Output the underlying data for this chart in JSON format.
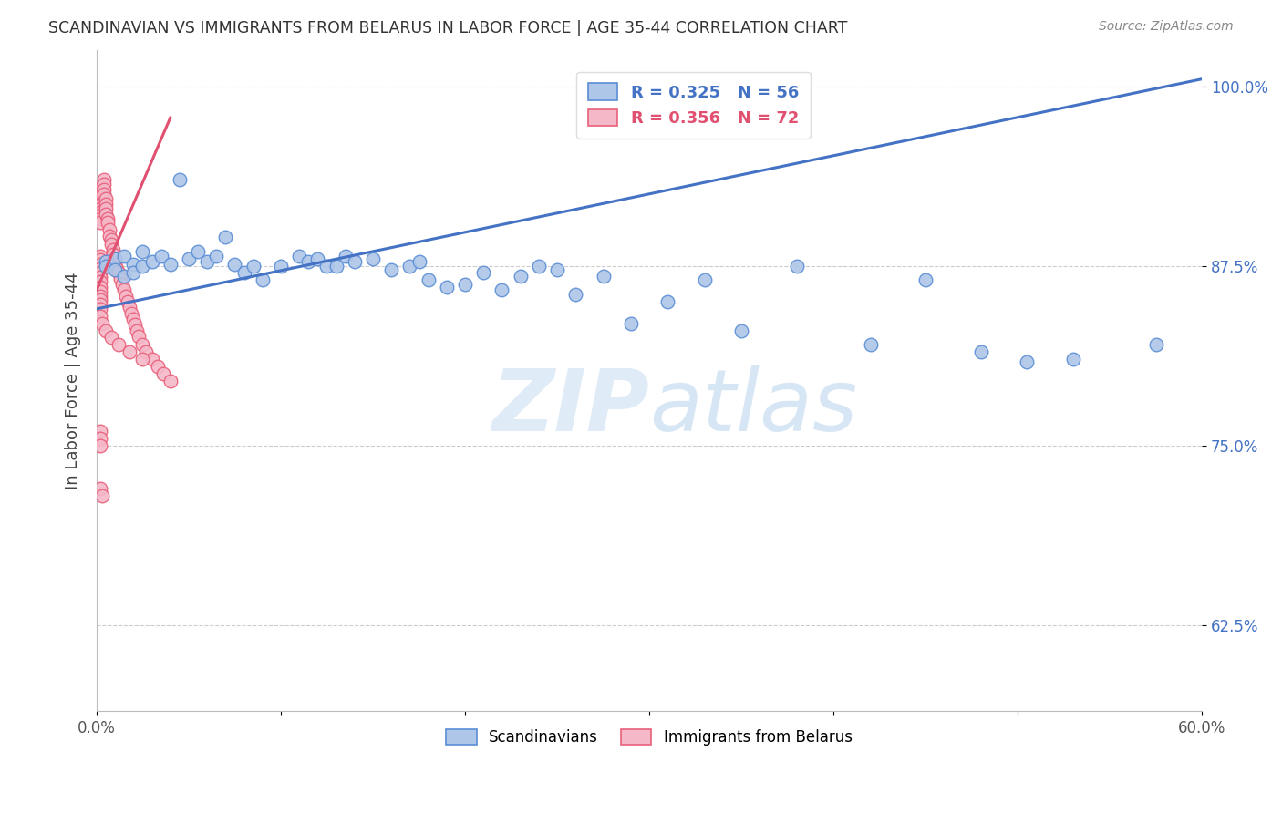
{
  "title": "SCANDINAVIAN VS IMMIGRANTS FROM BELARUS IN LABOR FORCE | AGE 35-44 CORRELATION CHART",
  "source": "Source: ZipAtlas.com",
  "ylabel": "In Labor Force | Age 35-44",
  "x_min": 0.0,
  "x_max": 0.6,
  "y_min": 0.565,
  "y_max": 1.025,
  "x_ticks": [
    0.0,
    0.1,
    0.2,
    0.3,
    0.4,
    0.5,
    0.6
  ],
  "x_tick_labels": [
    "0.0%",
    "",
    "",
    "",
    "",
    "",
    "60.0%"
  ],
  "y_ticks": [
    0.625,
    0.75,
    0.875,
    1.0
  ],
  "y_tick_labels": [
    "62.5%",
    "75.0%",
    "87.5%",
    "100.0%"
  ],
  "blue_color": "#aec6e8",
  "blue_edge_color": "#5b8ed6",
  "pink_color": "#f5b8c8",
  "pink_edge_color": "#e8607a",
  "blue_line_color": "#4472c4",
  "pink_line_color": "#e05070",
  "R_blue": 0.325,
  "N_blue": 56,
  "R_pink": 0.356,
  "N_pink": 72,
  "legend_label_blue": "Scandinavians",
  "legend_label_pink": "Immigrants from Belarus",
  "watermark_zip": "ZIP",
  "watermark_atlas": "atlas",
  "blue_trend_x0": 0.0,
  "blue_trend_y0": 0.845,
  "blue_trend_x1": 0.6,
  "blue_trend_y1": 1.005,
  "pink_trend_x0": 0.0,
  "pink_trend_y0": 0.858,
  "pink_trend_x1": 0.04,
  "pink_trend_y1": 0.978,
  "blue_scatter_x": [
    0.005,
    0.005,
    0.01,
    0.01,
    0.015,
    0.015,
    0.02,
    0.02,
    0.025,
    0.025,
    0.03,
    0.035,
    0.04,
    0.045,
    0.05,
    0.055,
    0.06,
    0.065,
    0.07,
    0.075,
    0.08,
    0.085,
    0.09,
    0.1,
    0.11,
    0.115,
    0.12,
    0.125,
    0.13,
    0.135,
    0.14,
    0.15,
    0.16,
    0.17,
    0.175,
    0.18,
    0.19,
    0.2,
    0.21,
    0.22,
    0.23,
    0.24,
    0.25,
    0.26,
    0.275,
    0.29,
    0.31,
    0.33,
    0.35,
    0.38,
    0.42,
    0.45,
    0.48,
    0.505,
    0.53,
    0.575
  ],
  "blue_scatter_y": [
    0.878,
    0.875,
    0.88,
    0.872,
    0.882,
    0.868,
    0.876,
    0.87,
    0.885,
    0.875,
    0.878,
    0.882,
    0.876,
    0.935,
    0.88,
    0.885,
    0.878,
    0.882,
    0.895,
    0.876,
    0.87,
    0.875,
    0.865,
    0.875,
    0.882,
    0.878,
    0.88,
    0.875,
    0.875,
    0.882,
    0.878,
    0.88,
    0.872,
    0.875,
    0.878,
    0.865,
    0.86,
    0.862,
    0.87,
    0.858,
    0.868,
    0.875,
    0.872,
    0.855,
    0.868,
    0.835,
    0.85,
    0.865,
    0.83,
    0.875,
    0.82,
    0.865,
    0.815,
    0.808,
    0.81,
    0.82
  ],
  "pink_scatter_x": [
    0.002,
    0.002,
    0.002,
    0.002,
    0.002,
    0.002,
    0.002,
    0.002,
    0.002,
    0.002,
    0.002,
    0.002,
    0.002,
    0.002,
    0.002,
    0.002,
    0.002,
    0.002,
    0.002,
    0.002,
    0.003,
    0.003,
    0.003,
    0.004,
    0.004,
    0.004,
    0.004,
    0.005,
    0.005,
    0.005,
    0.005,
    0.006,
    0.006,
    0.007,
    0.007,
    0.008,
    0.008,
    0.009,
    0.009,
    0.01,
    0.01,
    0.011,
    0.012,
    0.013,
    0.014,
    0.015,
    0.016,
    0.017,
    0.018,
    0.019,
    0.02,
    0.021,
    0.022,
    0.023,
    0.025,
    0.027,
    0.03,
    0.033,
    0.036,
    0.04,
    0.002,
    0.003,
    0.005,
    0.008,
    0.012,
    0.018,
    0.025,
    0.002,
    0.002,
    0.002,
    0.002,
    0.003
  ],
  "pink_scatter_y": [
    0.882,
    0.879,
    0.876,
    0.873,
    0.87,
    0.867,
    0.864,
    0.86,
    0.857,
    0.854,
    0.851,
    0.848,
    0.845,
    0.92,
    0.918,
    0.915,
    0.912,
    0.91,
    0.908,
    0.905,
    0.93,
    0.927,
    0.924,
    0.935,
    0.932,
    0.928,
    0.925,
    0.922,
    0.918,
    0.915,
    0.911,
    0.908,
    0.905,
    0.9,
    0.896,
    0.893,
    0.89,
    0.886,
    0.883,
    0.88,
    0.876,
    0.873,
    0.87,
    0.866,
    0.862,
    0.858,
    0.854,
    0.85,
    0.846,
    0.842,
    0.838,
    0.834,
    0.83,
    0.826,
    0.82,
    0.815,
    0.81,
    0.805,
    0.8,
    0.795,
    0.84,
    0.835,
    0.83,
    0.825,
    0.82,
    0.815,
    0.81,
    0.76,
    0.755,
    0.75,
    0.72,
    0.715
  ]
}
